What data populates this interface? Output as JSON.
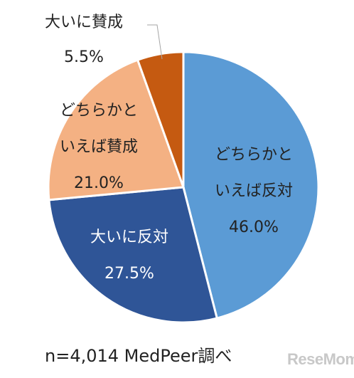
{
  "chart_data": {
    "type": "pie",
    "title": "",
    "start": "12 o'clock, clockwise",
    "slices": [
      {
        "label": "どちらかといえば反対",
        "value": 46.0,
        "value_label": "46.0%",
        "color": "#5b9bd5"
      },
      {
        "label": "大いに反対",
        "value": 27.5,
        "value_label": "27.5%",
        "color": "#2f5597"
      },
      {
        "label": "どちらかといえば賛成",
        "value": 21.0,
        "value_label": "21.0%",
        "color": "#f4b183"
      },
      {
        "label": "大いに賛成",
        "value": 5.5,
        "value_label": "5.5%",
        "color": "#c55a11"
      }
    ],
    "label_lines": {
      "opp_weak": [
        "どちらかと",
        "いえば反対",
        "46.0%"
      ],
      "opp_strong": [
        "大いに反対",
        "27.5%"
      ],
      "sup_weak": [
        "どちらかと",
        "いえば賛成",
        "21.0%"
      ],
      "sup_strong": [
        "大いに賛成",
        "5.5%"
      ]
    },
    "note": "n=4,014 MedPeer調べ"
  },
  "watermark": "ReseMom"
}
